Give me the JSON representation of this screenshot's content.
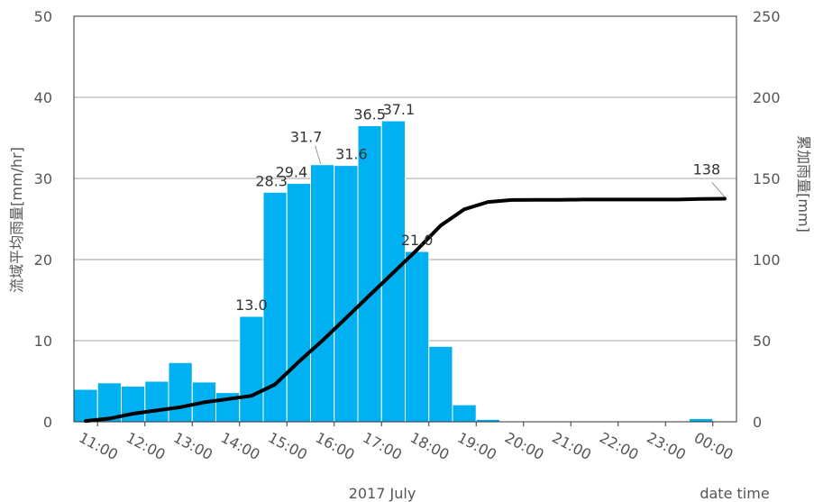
{
  "chart_data": {
    "type": "bar",
    "combo": "bar+line",
    "xlabel": "2017 July",
    "xlabel_right": "date time",
    "ylabel_left": "流域平均雨量[mm/hr]",
    "ylabel_right": "累加雨量[mm]",
    "ylim_left": [
      0,
      50
    ],
    "ylim_right": [
      0,
      250
    ],
    "yticks_left": [
      "0",
      "10",
      "20",
      "30",
      "40",
      "50"
    ],
    "yticks_right": [
      "0",
      "50",
      "100",
      "150",
      "200",
      "250"
    ],
    "xticks": [
      "11:00",
      "12:00",
      "13:00",
      "14:00",
      "15:00",
      "16:00",
      "17:00",
      "18:00",
      "19:00",
      "20:00",
      "21:00",
      "22:00",
      "23:00",
      "00:00"
    ],
    "grid": true,
    "bar_color": "#00b0f0",
    "line_color": "#000000",
    "x_start": "10:30",
    "x_end": "00:30",
    "bar_width_minutes": 30,
    "bars": {
      "start_times": [
        "10:30",
        "11:00",
        "11:30",
        "12:00",
        "12:30",
        "13:00",
        "13:30",
        "14:00",
        "14:30",
        "15:00",
        "15:30",
        "16:00",
        "16:30",
        "17:00",
        "17:30",
        "18:00",
        "18:30",
        "19:00",
        "19:30",
        "20:00",
        "20:30",
        "21:00",
        "21:30",
        "22:00",
        "22:30",
        "23:00",
        "23:30",
        "00:00"
      ],
      "values": [
        4.0,
        4.8,
        4.4,
        5.0,
        7.3,
        4.9,
        3.6,
        13.0,
        28.3,
        29.4,
        31.7,
        31.6,
        36.5,
        37.1,
        21.0,
        9.3,
        2.1,
        0.3,
        0,
        0,
        0,
        0,
        0,
        0,
        0,
        0,
        0.4,
        0
      ]
    },
    "data_labels": [
      {
        "bar_time": "14:00",
        "text": "13.0"
      },
      {
        "bar_time": "14:30",
        "text": "28.3"
      },
      {
        "bar_time": "15:00",
        "text": "29.4"
      },
      {
        "bar_time": "15:30",
        "text": "31.7"
      },
      {
        "bar_time": "16:00",
        "text": "31.6"
      },
      {
        "bar_time": "16:30",
        "text": "36.5"
      },
      {
        "bar_time": "17:00",
        "text": "37.1"
      },
      {
        "bar_time": "17:30",
        "text": "21.0"
      }
    ],
    "cumulative_line": {
      "x": [
        "10:45",
        "11:15",
        "11:45",
        "12:15",
        "12:45",
        "13:15",
        "13:45",
        "14:15",
        "14:45",
        "15:15",
        "15:45",
        "16:15",
        "16:45",
        "17:15",
        "17:45",
        "18:15",
        "18:45",
        "19:15",
        "19:45",
        "20:15",
        "20:45",
        "21:15",
        "21:45",
        "22:15",
        "22:45",
        "23:15",
        "23:45",
        "00:15"
      ],
      "y": [
        0.5,
        2,
        5,
        7,
        9,
        12,
        14,
        16,
        23,
        37,
        50,
        64,
        78,
        92,
        106,
        121,
        131,
        135.5,
        136.7,
        136.8,
        136.8,
        137,
        137,
        137,
        137,
        137,
        137.4,
        137.5
      ],
      "end_label": "138"
    }
  }
}
